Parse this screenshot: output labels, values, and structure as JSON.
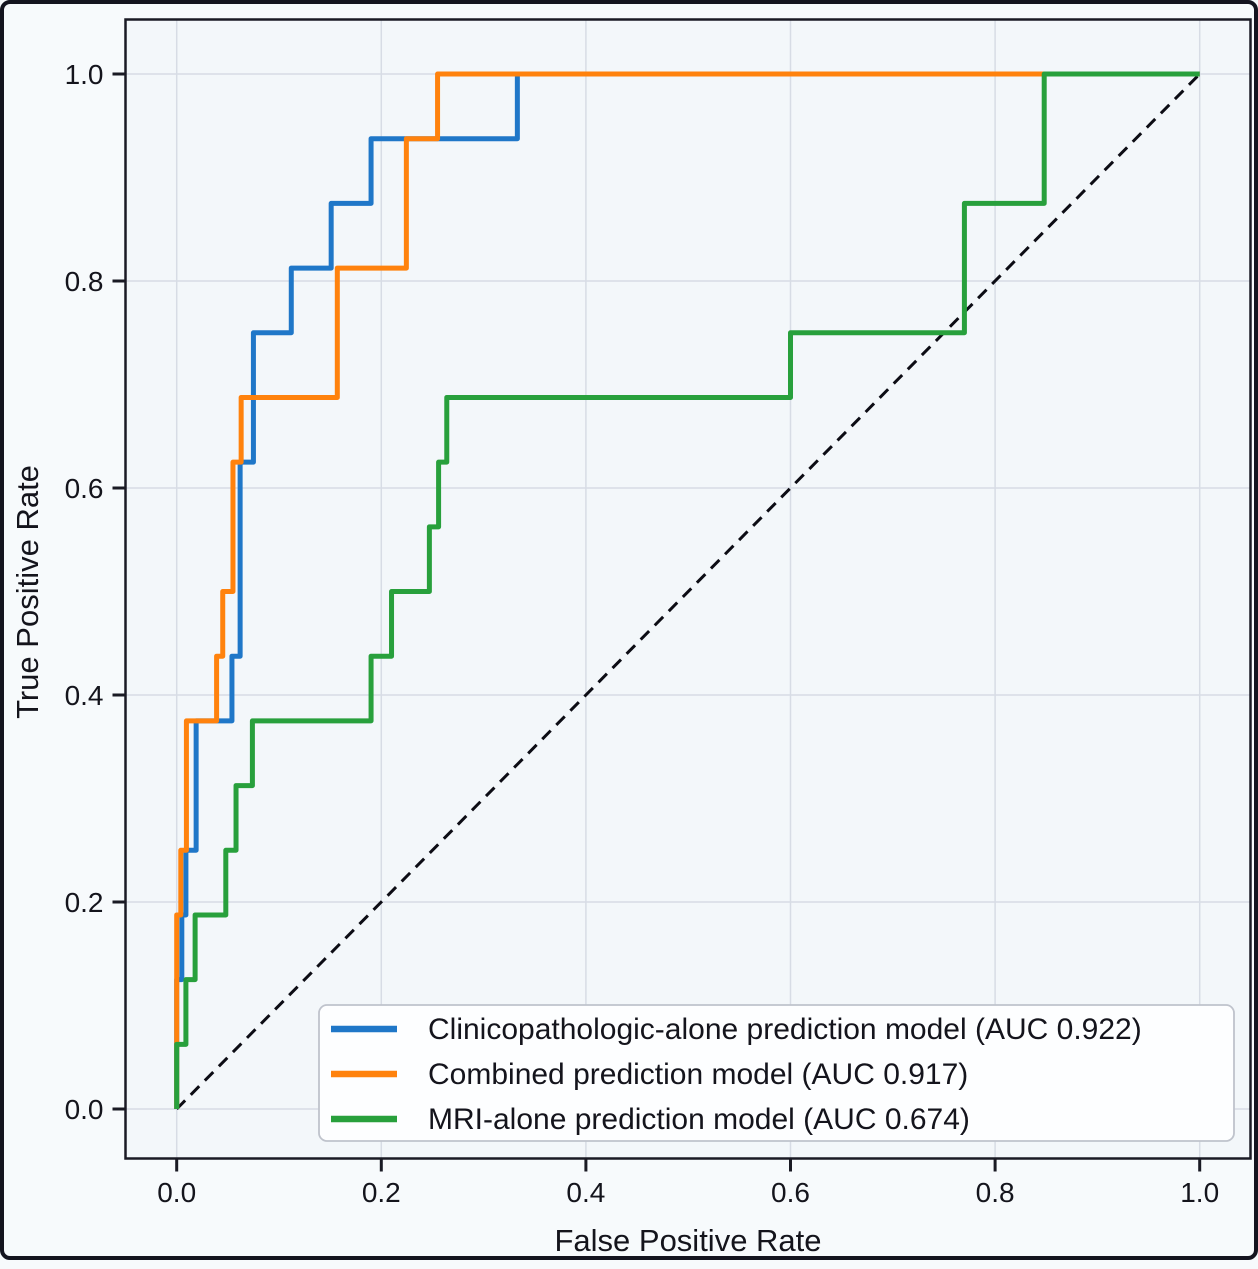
{
  "figure": {
    "background": "#f7fafc",
    "plot_background": "#f3f7fa",
    "frame_color": "#14141f",
    "axis_color": "#1a1a24",
    "grid_color": "#d7dce5",
    "text_color": "#14141c",
    "legend_background": "#fdfeff",
    "legend_border": "#bfc3cc"
  },
  "chart_data": {
    "type": "line",
    "subtype": "roc-curves",
    "title": "",
    "xlabel": "False Positive Rate",
    "ylabel": "True Positive Rate",
    "xlim": [
      -0.05,
      1.05
    ],
    "ylim": [
      -0.05,
      1.05
    ],
    "grid": true,
    "legend_position": "lower right",
    "x_ticks": [
      "0.0",
      "0.2",
      "0.4",
      "0.6",
      "0.8",
      "1.0"
    ],
    "y_ticks": [
      "0.0",
      "0.2",
      "0.4",
      "0.6",
      "0.8",
      "1.0"
    ],
    "x_tick_values": [
      0,
      0.2,
      0.4,
      0.6,
      0.8,
      1.0
    ],
    "y_tick_values": [
      0,
      0.2,
      0.4,
      0.6,
      0.8,
      1.0
    ],
    "series": [
      {
        "name": "Clinicopathologic-alone prediction model (AUC 0.922)",
        "auc": 0.922,
        "color": "#1f77c8",
        "points": [
          [
            0,
            0
          ],
          [
            0,
            0.125
          ],
          [
            0.005,
            0.125
          ],
          [
            0.005,
            0.1875
          ],
          [
            0.009,
            0.1875
          ],
          [
            0.009,
            0.25
          ],
          [
            0.019,
            0.25
          ],
          [
            0.019,
            0.375
          ],
          [
            0.054,
            0.375
          ],
          [
            0.054,
            0.4375
          ],
          [
            0.062,
            0.4375
          ],
          [
            0.062,
            0.625
          ],
          [
            0.075,
            0.625
          ],
          [
            0.075,
            0.75
          ],
          [
            0.112,
            0.75
          ],
          [
            0.112,
            0.8125
          ],
          [
            0.151,
            0.8125
          ],
          [
            0.151,
            0.875
          ],
          [
            0.19,
            0.875
          ],
          [
            0.19,
            0.9375
          ],
          [
            0.333,
            0.9375
          ],
          [
            0.333,
            1
          ],
          [
            1,
            1
          ]
        ]
      },
      {
        "name": "Combined prediction model (AUC 0.917)",
        "auc": 0.917,
        "color": "#ff820d",
        "points": [
          [
            0,
            0
          ],
          [
            0,
            0.1875
          ],
          [
            0.004,
            0.1875
          ],
          [
            0.004,
            0.25
          ],
          [
            0.0095,
            0.25
          ],
          [
            0.0095,
            0.375
          ],
          [
            0.039,
            0.375
          ],
          [
            0.039,
            0.4375
          ],
          [
            0.045,
            0.4375
          ],
          [
            0.045,
            0.5
          ],
          [
            0.055,
            0.5
          ],
          [
            0.055,
            0.625
          ],
          [
            0.063,
            0.625
          ],
          [
            0.063,
            0.6875
          ],
          [
            0.157,
            0.6875
          ],
          [
            0.157,
            0.8125
          ],
          [
            0.2245,
            0.8125
          ],
          [
            0.2245,
            0.9375
          ],
          [
            0.255,
            0.9375
          ],
          [
            0.255,
            1
          ],
          [
            1,
            1
          ]
        ]
      },
      {
        "name": "MRI-alone prediction model (AUC 0.674)",
        "auc": 0.674,
        "color": "#28a03c",
        "points": [
          [
            0,
            0
          ],
          [
            0,
            0.0625
          ],
          [
            0.009,
            0.0625
          ],
          [
            0.009,
            0.125
          ],
          [
            0.018,
            0.125
          ],
          [
            0.018,
            0.1875
          ],
          [
            0.048,
            0.1875
          ],
          [
            0.048,
            0.25
          ],
          [
            0.058,
            0.25
          ],
          [
            0.058,
            0.3125
          ],
          [
            0.074,
            0.3125
          ],
          [
            0.074,
            0.375
          ],
          [
            0.19,
            0.375
          ],
          [
            0.19,
            0.4375
          ],
          [
            0.21,
            0.4375
          ],
          [
            0.21,
            0.5
          ],
          [
            0.247,
            0.5
          ],
          [
            0.247,
            0.5625
          ],
          [
            0.256,
            0.5625
          ],
          [
            0.256,
            0.625
          ],
          [
            0.264,
            0.625
          ],
          [
            0.264,
            0.6875
          ],
          [
            0.6,
            0.6875
          ],
          [
            0.6,
            0.75
          ],
          [
            0.77,
            0.75
          ],
          [
            0.77,
            0.875
          ],
          [
            0.848,
            0.875
          ],
          [
            0.848,
            1
          ],
          [
            1,
            1
          ]
        ]
      }
    ],
    "reference_line": {
      "name": "chance-diagonal",
      "style": "dashed",
      "color": "#0c0c14",
      "points": [
        [
          0,
          0
        ],
        [
          1,
          1
        ]
      ]
    }
  }
}
